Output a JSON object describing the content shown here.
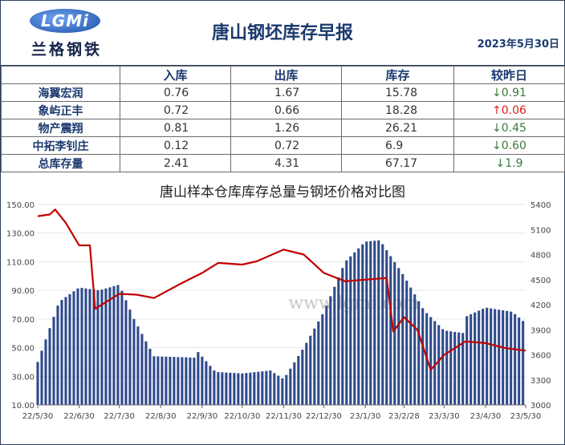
{
  "header": {
    "logo_text": "LGMi",
    "logo_subtext": "兰格钢铁",
    "title": "唐山钢坯库存早报",
    "date": "2023年5月30日"
  },
  "table": {
    "columns": [
      "",
      "入库",
      "出库",
      "库存",
      "较昨日"
    ],
    "rows": [
      {
        "name": "海翼宏润",
        "in": "0.76",
        "out": "1.67",
        "stock": "15.78",
        "change": "↓0.91",
        "dir": "down"
      },
      {
        "name": "象屿正丰",
        "in": "0.72",
        "out": "0.66",
        "stock": "18.28",
        "change": "↑0.06",
        "dir": "up"
      },
      {
        "name": "物产震翔",
        "in": "0.81",
        "out": "1.26",
        "stock": "26.21",
        "change": "↓0.45",
        "dir": "down"
      },
      {
        "name": "中拓李钊庄",
        "in": "0.12",
        "out": "0.72",
        "stock": "6.9",
        "change": "↓0.60",
        "dir": "down"
      },
      {
        "name": "总库存量",
        "in": "2.41",
        "out": "4.31",
        "stock": "67.17",
        "change": "↓1.9",
        "dir": "down"
      }
    ]
  },
  "colors": {
    "bar": "#2e4a8c",
    "line": "#c00000",
    "up": "#e02020",
    "down": "#3a7a3a"
  },
  "chart_data": {
    "type": "bar",
    "title": "唐山样本仓库库存总量与钢坯价格对比图",
    "watermark": "www.lgmi.com",
    "x_ticks": [
      "22/5/30",
      "22/6/30",
      "22/7/30",
      "22/8/30",
      "22/9/30",
      "22/10/30",
      "22/11/30",
      "22/12/30",
      "23/1/30",
      "23/2/28",
      "23/3/30",
      "23/4/30",
      "23/5/30"
    ],
    "y_left": {
      "ticks": [
        "150.00",
        "130.00",
        "110.00",
        "90.00",
        "70.00",
        "50.00",
        "30.00",
        "10.00"
      ],
      "min": 10,
      "max": 150
    },
    "y_right": {
      "ticks": [
        "5400",
        "5100",
        "4800",
        "4500",
        "4200",
        "3900",
        "3600",
        "3300",
        "3000"
      ],
      "min": 3000,
      "max": 5400
    },
    "inventory_anchors": [
      {
        "date": "22/5/30",
        "value": 40
      },
      {
        "date": "22/6/15",
        "value": 82
      },
      {
        "date": "22/6/30",
        "value": 92
      },
      {
        "date": "22/7/15",
        "value": 90
      },
      {
        "date": "22/7/30",
        "value": 94
      },
      {
        "date": "22/8/10",
        "value": 70
      },
      {
        "date": "22/8/25",
        "value": 44
      },
      {
        "date": "22/9/25",
        "value": 43
      },
      {
        "date": "22/9/26",
        "value": 48
      },
      {
        "date": "22/10/10",
        "value": 33
      },
      {
        "date": "22/10/30",
        "value": 32
      },
      {
        "date": "22/11/20",
        "value": 34
      },
      {
        "date": "22/11/30",
        "value": 28
      },
      {
        "date": "22/12/15",
        "value": 50
      },
      {
        "date": "22/12/30",
        "value": 75
      },
      {
        "date": "23/1/15",
        "value": 110
      },
      {
        "date": "23/1/30",
        "value": 124
      },
      {
        "date": "23/2/10",
        "value": 125
      },
      {
        "date": "23/2/28",
        "value": 100
      },
      {
        "date": "23/3/15",
        "value": 76
      },
      {
        "date": "23/3/30",
        "value": 62
      },
      {
        "date": "23/4/15",
        "value": 60
      },
      {
        "date": "23/4/16",
        "value": 72
      },
      {
        "date": "23/4/30",
        "value": 78
      },
      {
        "date": "23/5/20",
        "value": 75
      },
      {
        "date": "23/5/30",
        "value": 67
      }
    ],
    "price_anchors": [
      {
        "date": "22/5/30",
        "value": 5260
      },
      {
        "date": "22/6/8",
        "value": 5280
      },
      {
        "date": "22/6/12",
        "value": 5340
      },
      {
        "date": "22/6/20",
        "value": 5180
      },
      {
        "date": "22/6/30",
        "value": 4910
      },
      {
        "date": "22/7/8",
        "value": 4910
      },
      {
        "date": "22/7/12",
        "value": 4150
      },
      {
        "date": "22/7/30",
        "value": 4330
      },
      {
        "date": "22/8/12",
        "value": 4320
      },
      {
        "date": "22/8/25",
        "value": 4280
      },
      {
        "date": "22/9/15",
        "value": 4460
      },
      {
        "date": "22/9/30",
        "value": 4580
      },
      {
        "date": "22/10/12",
        "value": 4700
      },
      {
        "date": "22/10/30",
        "value": 4680
      },
      {
        "date": "22/11/10",
        "value": 4720
      },
      {
        "date": "22/11/30",
        "value": 4860
      },
      {
        "date": "22/12/15",
        "value": 4800
      },
      {
        "date": "22/12/30",
        "value": 4580
      },
      {
        "date": "23/1/15",
        "value": 4480
      },
      {
        "date": "23/1/30",
        "value": 4500
      },
      {
        "date": "23/2/15",
        "value": 4520
      },
      {
        "date": "23/2/20",
        "value": 3880
      },
      {
        "date": "23/2/28",
        "value": 4050
      },
      {
        "date": "23/3/10",
        "value": 3900
      },
      {
        "date": "23/3/20",
        "value": 3420
      },
      {
        "date": "23/3/30",
        "value": 3600
      },
      {
        "date": "23/4/15",
        "value": 3760
      },
      {
        "date": "23/4/30",
        "value": 3740
      },
      {
        "date": "23/5/15",
        "value": 3680
      },
      {
        "date": "23/5/30",
        "value": 3650
      }
    ]
  }
}
